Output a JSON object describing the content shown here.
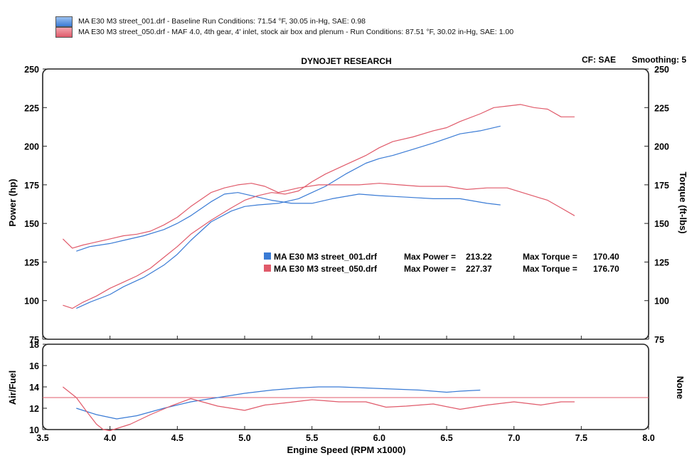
{
  "legend": [
    {
      "label": "MA E30 M3 street_001.drf - Baseline   Run Conditions: 71.54 °F, 30.05 in-Hg, SAE: 0.98",
      "color": "#3a7bd5"
    },
    {
      "label": "MA E30 M3 street_050.drf - MAF 4.0, 4th gear, 4' inlet, stock air box and plenum  -  Run Conditions: 87.51 °F, 30.02 in-Hg, SAE: 1.00",
      "color": "#e05a6a"
    }
  ],
  "header": {
    "title": "DYNOJET RESEARCH",
    "cf": "CF: SAE",
    "smoothing": "Smoothing: 5"
  },
  "summary": [
    {
      "file": "MA E30 M3 street_001.drf",
      "power_label": "Max Power =",
      "power": "213.22",
      "torque_label": "Max Torque =",
      "torque": "170.40",
      "color": "#3a7bd5"
    },
    {
      "file": "MA E30 M3 street_050.drf",
      "power_label": "Max Power =",
      "power": "227.37",
      "torque_label": "Max Torque =",
      "torque": "176.70",
      "color": "#e05a6a"
    }
  ],
  "chart_data": [
    {
      "type": "line",
      "xlim": [
        3.5,
        8.0
      ],
      "ylim": [
        75,
        250
      ],
      "ylim_right": [
        75,
        250
      ],
      "x_ticks": [
        "3.5",
        "4.0",
        "4.5",
        "5.0",
        "5.5",
        "6.0",
        "6.5",
        "7.0",
        "7.5",
        "8.0"
      ],
      "y_ticks": [
        "75",
        "100",
        "125",
        "150",
        "175",
        "200",
        "225",
        "250"
      ],
      "ylabel": "Power (hp)",
      "ylabel_right": "Torque (ft-lbs)",
      "series": [
        {
          "color": "#3a7bd5",
          "kind": "power",
          "x": [
            3.75,
            3.85,
            4.0,
            4.1,
            4.25,
            4.4,
            4.5,
            4.6,
            4.75,
            4.9,
            5.0,
            5.1,
            5.25,
            5.4,
            5.5,
            5.6,
            5.75,
            5.9,
            6.0,
            6.1,
            6.25,
            6.4,
            6.5,
            6.6,
            6.75,
            6.9
          ],
          "y": [
            95,
            99,
            104,
            109,
            115,
            123,
            130,
            139,
            151,
            158,
            161,
            162,
            163,
            166,
            170,
            174,
            182,
            189,
            192,
            194,
            198,
            202,
            205,
            208,
            210,
            213
          ]
        },
        {
          "color": "#3a7bd5",
          "kind": "torque",
          "x": [
            3.75,
            3.85,
            4.0,
            4.1,
            4.25,
            4.4,
            4.5,
            4.6,
            4.75,
            4.85,
            4.95,
            5.05,
            5.2,
            5.35,
            5.5,
            5.65,
            5.85,
            6.0,
            6.2,
            6.4,
            6.6,
            6.8,
            6.9
          ],
          "y": [
            132,
            135,
            137,
            139,
            142,
            146,
            150,
            155,
            164,
            169,
            170,
            168,
            165,
            163,
            163,
            166,
            169,
            168,
            167,
            166,
            166,
            163,
            162
          ]
        },
        {
          "color": "#e05a6a",
          "kind": "power",
          "x": [
            3.65,
            3.72,
            3.8,
            3.9,
            4.0,
            4.1,
            4.2,
            4.3,
            4.4,
            4.5,
            4.6,
            4.75,
            4.9,
            5.0,
            5.1,
            5.2,
            5.3,
            5.4,
            5.5,
            5.6,
            5.75,
            5.9,
            6.0,
            6.1,
            6.25,
            6.4,
            6.5,
            6.6,
            6.75,
            6.85,
            6.95,
            7.05,
            7.15,
            7.25,
            7.35,
            7.45
          ],
          "y": [
            97,
            95,
            99,
            103,
            108,
            112,
            116,
            121,
            128,
            135,
            143,
            152,
            160,
            165,
            168,
            170,
            169,
            171,
            177,
            182,
            188,
            194,
            199,
            203,
            206,
            210,
            212,
            216,
            221,
            225,
            226,
            227,
            225,
            224,
            219,
            219
          ]
        },
        {
          "color": "#e05a6a",
          "kind": "torque",
          "x": [
            3.65,
            3.72,
            3.8,
            3.9,
            4.0,
            4.1,
            4.2,
            4.3,
            4.4,
            4.5,
            4.6,
            4.75,
            4.85,
            4.95,
            5.05,
            5.15,
            5.25,
            5.4,
            5.55,
            5.7,
            5.85,
            6.0,
            6.15,
            6.3,
            6.5,
            6.65,
            6.8,
            6.95,
            7.1,
            7.25,
            7.35,
            7.45
          ],
          "y": [
            140,
            134,
            136,
            138,
            140,
            142,
            143,
            145,
            149,
            154,
            161,
            170,
            173,
            175,
            176,
            174,
            170,
            173,
            175,
            175,
            175,
            176,
            175,
            174,
            174,
            172,
            173,
            173,
            169,
            165,
            160,
            155
          ]
        }
      ]
    },
    {
      "type": "line",
      "xlim": [
        3.5,
        8.0
      ],
      "ylim": [
        10,
        18
      ],
      "x_ticks": [
        "3.5",
        "4.0",
        "4.5",
        "5.0",
        "5.5",
        "6.0",
        "6.5",
        "7.0",
        "7.5",
        "8.0"
      ],
      "y_ticks": [
        "10",
        "12",
        "14",
        "16",
        "18"
      ],
      "xlabel": "Engine Speed (RPM x1000)",
      "ylabel": "Air/Fuel",
      "ylabel_right": "None",
      "reference_line": 13.0,
      "series": [
        {
          "color": "#3a7bd5",
          "x": [
            3.75,
            3.9,
            4.05,
            4.2,
            4.4,
            4.6,
            4.8,
            5.0,
            5.2,
            5.4,
            5.55,
            5.7,
            5.9,
            6.1,
            6.3,
            6.5,
            6.6,
            6.75
          ],
          "y": [
            12.0,
            11.4,
            11.0,
            11.3,
            12.0,
            12.6,
            13.0,
            13.4,
            13.7,
            13.9,
            14.0,
            14.0,
            13.9,
            13.8,
            13.7,
            13.5,
            13.6,
            13.7
          ]
        },
        {
          "color": "#e05a6a",
          "x": [
            3.65,
            3.75,
            3.82,
            3.9,
            3.95,
            4.0,
            4.05,
            4.15,
            4.3,
            4.45,
            4.6,
            4.8,
            5.0,
            5.15,
            5.3,
            5.5,
            5.7,
            5.9,
            6.05,
            6.2,
            6.4,
            6.6,
            6.8,
            7.0,
            7.2,
            7.35,
            7.45
          ],
          "y": [
            14.0,
            13.0,
            11.8,
            10.5,
            10.0,
            9.9,
            10.1,
            10.5,
            11.4,
            12.2,
            12.9,
            12.2,
            11.8,
            12.3,
            12.5,
            12.8,
            12.6,
            12.6,
            12.1,
            12.2,
            12.4,
            11.9,
            12.3,
            12.6,
            12.3,
            12.6,
            12.6
          ]
        }
      ]
    }
  ]
}
